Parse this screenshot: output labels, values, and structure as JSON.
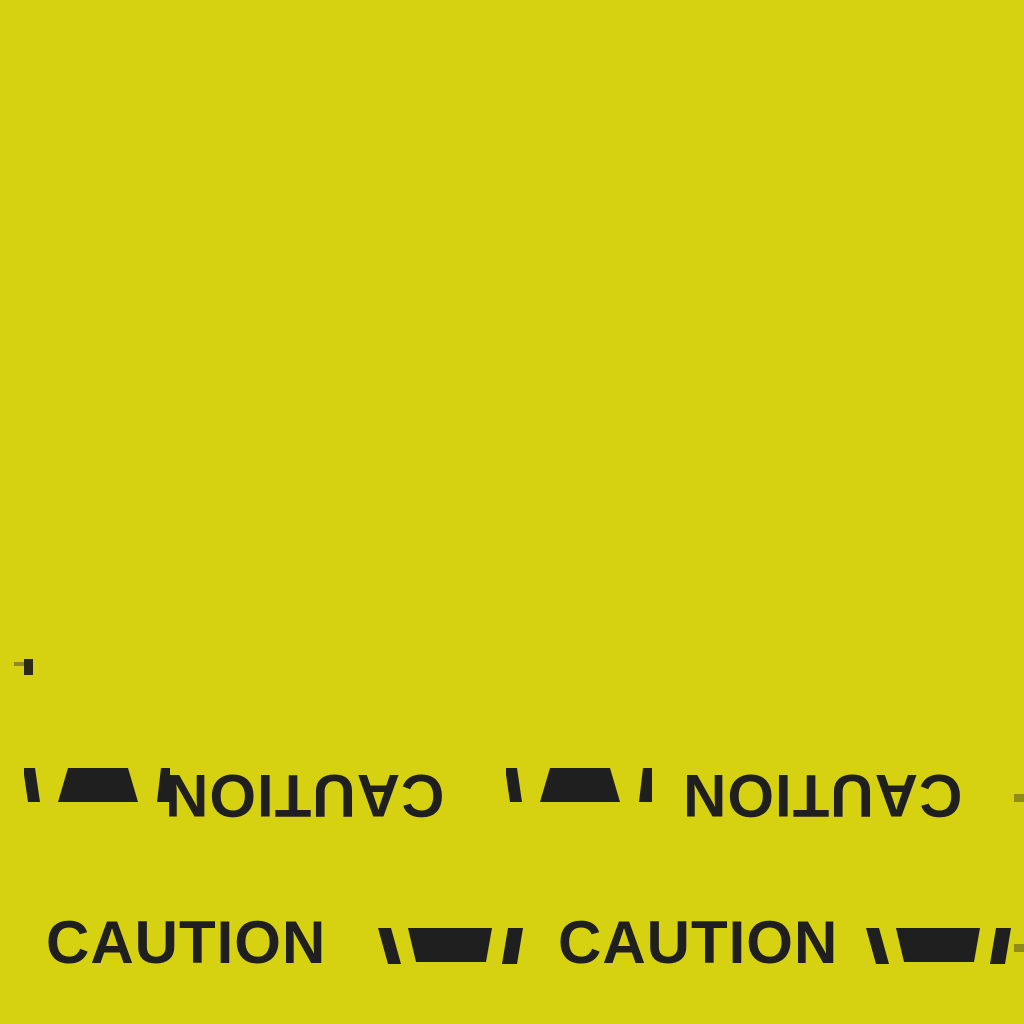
{
  "colors": {
    "background": "#d7d211",
    "ink": "#1f1f1f"
  },
  "tape_text": "CAUTION",
  "tape_icon": "barrier-bars-icon"
}
